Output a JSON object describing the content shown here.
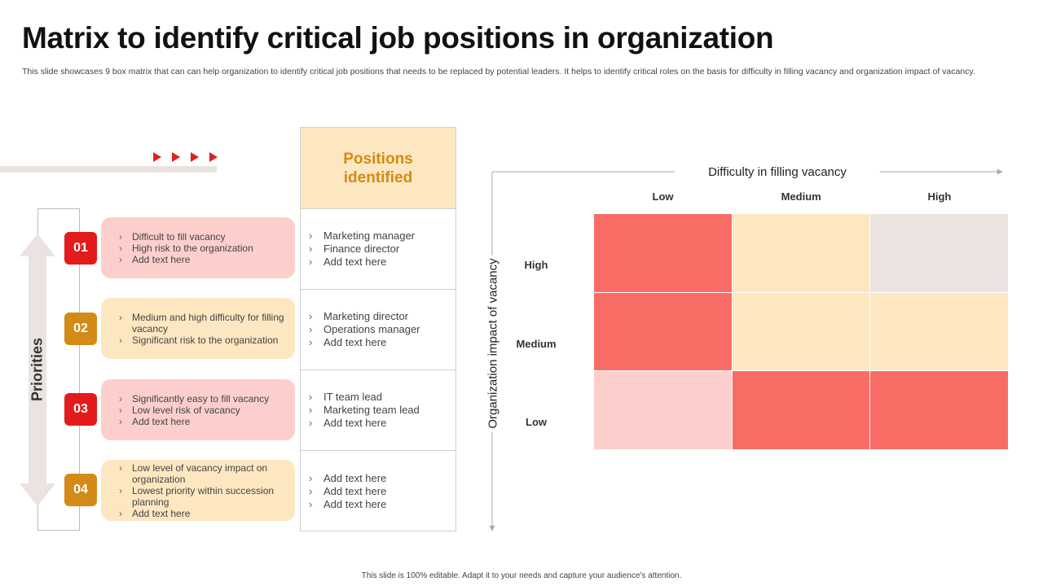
{
  "title": "Matrix to identify critical job positions in organization",
  "subtitle": "This slide showcases 9 box matrix that can can help organization to identify critical job positions that needs to be replaced by potential leaders. It helps to identify critical roles on the basis for difficulty in filling vacancy and organization impact of vacancy.",
  "footer": "This slide is 100% editable. Adapt it to your needs and capture your audience's attention.",
  "priorities_label": "Priorities",
  "colors": {
    "red": "#e31b1b",
    "amber": "#d38a16",
    "card_pink": "#fccfcd",
    "card_cream": "#fde7c1",
    "cell_red": "#f96b65",
    "cell_cream": "#fde7c1",
    "cell_grey": "#ebe3df",
    "cell_pink": "#fccfcd"
  },
  "priorities": [
    {
      "number": "01",
      "badge_color": "#e31b1b",
      "card_color": "#fccfcd",
      "items": [
        "Difficult to fill vacancy",
        "High risk to the organization",
        "Add text here"
      ]
    },
    {
      "number": "02",
      "badge_color": "#d38a16",
      "card_color": "#fde7c1",
      "items": [
        "Medium and high difficulty for filling vacancy",
        "Significant risk to the organization"
      ]
    },
    {
      "number": "03",
      "badge_color": "#e31b1b",
      "card_color": "#fccfcd",
      "items": [
        "Significantly easy to fill vacancy",
        "Low level risk of vacancy",
        "Add text here"
      ]
    },
    {
      "number": "04",
      "badge_color": "#d38a16",
      "card_color": "#fde7c1",
      "items": [
        "Low level of vacancy impact on organization",
        "Lowest priority within succession planning",
        "Add text here"
      ]
    }
  ],
  "positions": {
    "header": "Positions identified",
    "groups": [
      [
        "Marketing manager",
        "Finance director",
        "Add text here"
      ],
      [
        "Marketing director",
        "Operations manager",
        "Add text here"
      ],
      [
        "IT team lead",
        "Marketing team lead",
        "Add text here"
      ],
      [
        "Add text here",
        "Add text here",
        "Add text here"
      ]
    ]
  },
  "matrix": {
    "x_title": "Difficulty in filling vacancy",
    "y_title": "Organization impact of vacancy",
    "columns": [
      "Low",
      "Medium",
      "High"
    ],
    "rows": [
      "High",
      "Medium",
      "Low"
    ],
    "cells": [
      [
        "#f96b65",
        "#fde7c1",
        "#ebe3df"
      ],
      [
        "#f96b65",
        "#fde7c1",
        "#fde7c1"
      ],
      [
        "#fccfcd",
        "#f96b65",
        "#f96b65"
      ]
    ]
  }
}
